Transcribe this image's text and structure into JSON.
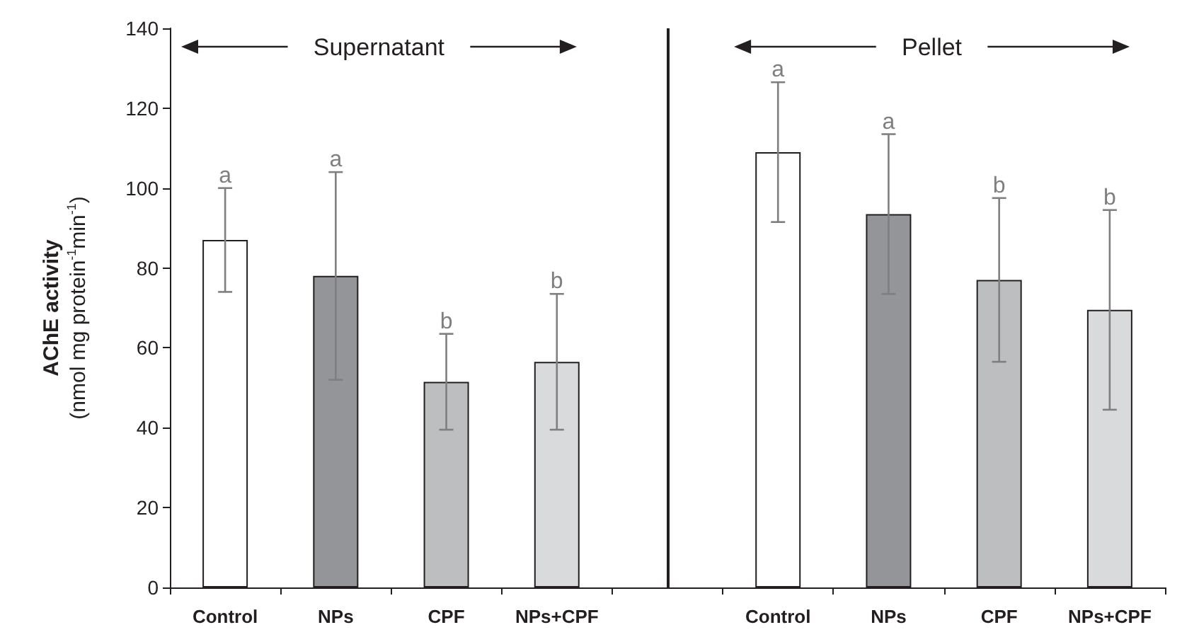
{
  "chart_data": {
    "type": "bar",
    "ylabel": "AChE activity\n(nmol mg protein$^{-1}$min$^{-1}$)",
    "categories": [
      "Control",
      "NPs",
      "CPF",
      "NPs+CPF",
      null,
      "Control",
      "NPs",
      "CPF",
      "NPs+CPF"
    ],
    "series": [
      {
        "colors": [
          "#ffffff",
          "#939598",
          "#bcbec0",
          "#d9dadb",
          null,
          "#ffffff",
          "#939598",
          "#bcbec0",
          "#d9dadb"
        ],
        "values": [
          87,
          78,
          51.5,
          56.5,
          null,
          109,
          93.5,
          77,
          69.5
        ],
        "errors": [
          13,
          26,
          12,
          17,
          null,
          17.5,
          20,
          20.5,
          25
        ]
      }
    ],
    "annotations": [
      "Supernatant",
      "Pellet",
      "a",
      "a",
      "b",
      "b",
      "a",
      "a",
      "b",
      "b"
    ],
    "ref_lines": [
      {
        "axis": "x",
        "value": null,
        "color": "#231f20"
      }
    ],
    "ylim": [
      0,
      140
    ],
    "yticks": [
      0,
      20,
      40,
      60,
      80,
      100,
      120,
      140
    ]
  }
}
